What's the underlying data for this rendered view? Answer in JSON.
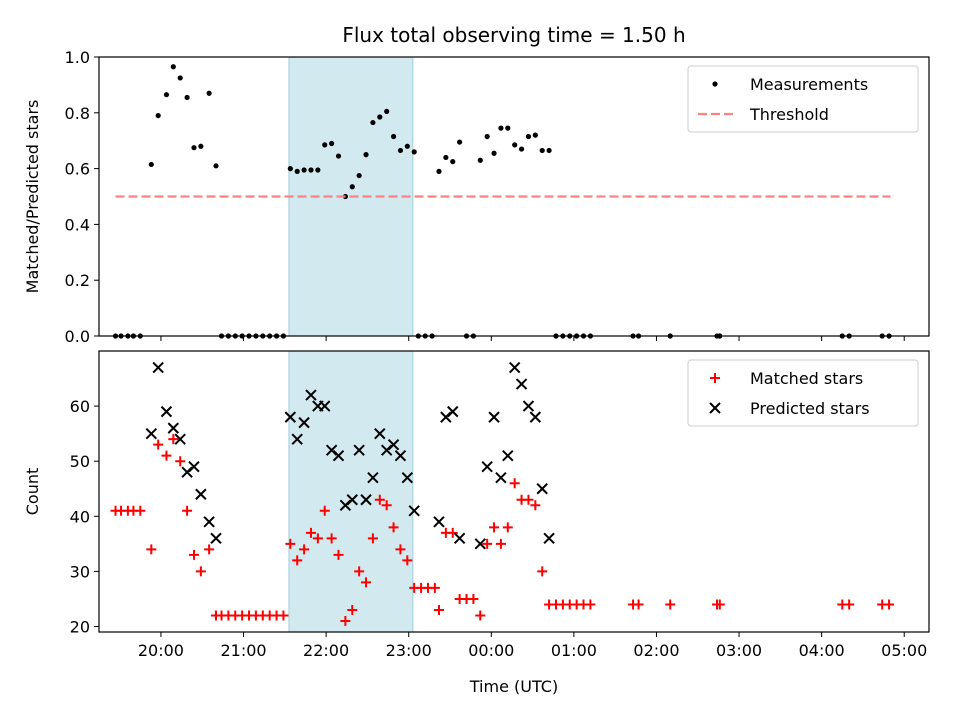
{
  "chart_data": [
    {
      "type": "scatter",
      "title": "Flux total observing time = 1.50 h",
      "xlabel": "",
      "ylabel": "Matched/Predicted stars",
      "ylim": [
        0,
        1.0
      ],
      "xlim": [
        "19:15",
        "05:18"
      ],
      "x_ticks": [
        "20:00",
        "21:00",
        "22:00",
        "23:00",
        "00:00",
        "01:00",
        "02:00",
        "03:00",
        "04:00",
        "05:00"
      ],
      "y_ticks": [
        "0.0",
        "0.2",
        "0.4",
        "0.6",
        "0.8",
        "1.0"
      ],
      "shaded_interval": [
        "21:33",
        "23:03"
      ],
      "shade_color": "#d2e9f0",
      "legend": {
        "position": "top-right",
        "entries": [
          "Measurements",
          "Threshold"
        ]
      },
      "series": [
        {
          "name": "Measurements",
          "marker": "dot",
          "color": "#000000",
          "points": [
            [
              "19:27",
              0
            ],
            [
              "19:31",
              0
            ],
            [
              "19:36",
              0
            ],
            [
              "19:40",
              0
            ],
            [
              "19:45",
              0
            ],
            [
              "19:53",
              0.615
            ],
            [
              "19:58",
              0.79
            ],
            [
              "20:04",
              0.865
            ],
            [
              "20:09",
              0.965
            ],
            [
              "20:14",
              0.925
            ],
            [
              "20:19",
              0.855
            ],
            [
              "20:24",
              0.675
            ],
            [
              "20:29",
              0.68
            ],
            [
              "20:35",
              0.87
            ],
            [
              "20:40",
              0.61
            ],
            [
              "20:44",
              0
            ],
            [
              "20:49",
              0
            ],
            [
              "20:54",
              0
            ],
            [
              "20:59",
              0
            ],
            [
              "21:04",
              0
            ],
            [
              "21:09",
              0
            ],
            [
              "21:14",
              0
            ],
            [
              "21:19",
              0
            ],
            [
              "21:24",
              0
            ],
            [
              "21:29",
              0
            ],
            [
              "21:34",
              0.6
            ],
            [
              "21:39",
              0.59
            ],
            [
              "21:44",
              0.595
            ],
            [
              "21:49",
              0.595
            ],
            [
              "21:54",
              0.595
            ],
            [
              "21:59",
              0.685
            ],
            [
              "22:04",
              0.69
            ],
            [
              "22:09",
              0.645
            ],
            [
              "22:14",
              0.5
            ],
            [
              "22:19",
              0.535
            ],
            [
              "22:24",
              0.575
            ],
            [
              "22:29",
              0.65
            ],
            [
              "22:34",
              0.765
            ],
            [
              "22:39",
              0.785
            ],
            [
              "22:44",
              0.805
            ],
            [
              "22:49",
              0.715
            ],
            [
              "22:54",
              0.665
            ],
            [
              "22:59",
              0.68
            ],
            [
              "23:04",
              0.66
            ],
            [
              "23:07",
              0
            ],
            [
              "23:12",
              0
            ],
            [
              "23:17",
              0
            ],
            [
              "23:22",
              0.59
            ],
            [
              "23:27",
              0.64
            ],
            [
              "23:32",
              0.625
            ],
            [
              "23:37",
              0.695
            ],
            [
              "23:42",
              0
            ],
            [
              "23:47",
              0
            ],
            [
              "23:52",
              0.63
            ],
            [
              "23:57",
              0.715
            ],
            [
              "00:02",
              0.655
            ],
            [
              "00:07",
              0.745
            ],
            [
              "00:12",
              0.745
            ],
            [
              "00:17",
              0.685
            ],
            [
              "00:22",
              0.67
            ],
            [
              "00:27",
              0.715
            ],
            [
              "00:32",
              0.72
            ],
            [
              "00:37",
              0.665
            ],
            [
              "00:42",
              0.665
            ],
            [
              "00:47",
              0
            ],
            [
              "00:52",
              0
            ],
            [
              "00:57",
              0
            ],
            [
              "01:02",
              0
            ],
            [
              "01:07",
              0
            ],
            [
              "01:12",
              0
            ],
            [
              "01:43",
              0
            ],
            [
              "01:47",
              0
            ],
            [
              "02:10",
              0
            ],
            [
              "02:44",
              0
            ],
            [
              "02:46",
              0
            ],
            [
              "04:15",
              0
            ],
            [
              "04:20",
              0
            ],
            [
              "04:44",
              0
            ],
            [
              "04:49",
              0
            ]
          ]
        },
        {
          "name": "Threshold",
          "style": "dashed",
          "color": "#ff8080",
          "points": [
            [
              "19:27",
              0.5
            ],
            [
              "04:50",
              0.5
            ]
          ]
        }
      ]
    },
    {
      "type": "scatter",
      "title": "",
      "xlabel": "Time (UTC)",
      "ylabel": "Count",
      "ylim": [
        19,
        70
      ],
      "xlim": [
        "19:15",
        "05:18"
      ],
      "x_ticks": [
        "20:00",
        "21:00",
        "22:00",
        "23:00",
        "00:00",
        "01:00",
        "02:00",
        "03:00",
        "04:00",
        "05:00"
      ],
      "y_ticks": [
        "20",
        "30",
        "40",
        "50",
        "60"
      ],
      "shaded_interval": [
        "21:33",
        "23:03"
      ],
      "shade_color": "#d2e9f0",
      "legend": {
        "position": "top-right",
        "entries": [
          "Matched stars",
          "Predicted stars"
        ]
      },
      "series": [
        {
          "name": "Matched stars",
          "marker": "plus",
          "color": "#ff0000",
          "points": [
            [
              "19:27",
              41
            ],
            [
              "19:31",
              41
            ],
            [
              "19:36",
              41
            ],
            [
              "19:40",
              41
            ],
            [
              "19:45",
              41
            ],
            [
              "19:53",
              34
            ],
            [
              "19:58",
              53
            ],
            [
              "20:04",
              51
            ],
            [
              "20:09",
              54
            ],
            [
              "20:14",
              50
            ],
            [
              "20:19",
              41
            ],
            [
              "20:24",
              33
            ],
            [
              "20:29",
              30
            ],
            [
              "20:35",
              34
            ],
            [
              "20:40",
              22
            ],
            [
              "20:44",
              22
            ],
            [
              "20:49",
              22
            ],
            [
              "20:54",
              22
            ],
            [
              "20:59",
              22
            ],
            [
              "21:04",
              22
            ],
            [
              "21:09",
              22
            ],
            [
              "21:14",
              22
            ],
            [
              "21:19",
              22
            ],
            [
              "21:24",
              22
            ],
            [
              "21:29",
              22
            ],
            [
              "21:34",
              35
            ],
            [
              "21:39",
              32
            ],
            [
              "21:44",
              34
            ],
            [
              "21:49",
              37
            ],
            [
              "21:54",
              36
            ],
            [
              "21:59",
              41
            ],
            [
              "22:04",
              36
            ],
            [
              "22:09",
              33
            ],
            [
              "22:14",
              21
            ],
            [
              "22:19",
              23
            ],
            [
              "22:24",
              30
            ],
            [
              "22:29",
              28
            ],
            [
              "22:34",
              36
            ],
            [
              "22:39",
              43
            ],
            [
              "22:44",
              42
            ],
            [
              "22:49",
              38
            ],
            [
              "22:54",
              34
            ],
            [
              "22:59",
              32
            ],
            [
              "23:04",
              27
            ],
            [
              "23:09",
              27
            ],
            [
              "23:14",
              27
            ],
            [
              "23:19",
              27
            ],
            [
              "23:22",
              23
            ],
            [
              "23:27",
              37
            ],
            [
              "23:32",
              37
            ],
            [
              "23:37",
              25
            ],
            [
              "23:42",
              25
            ],
            [
              "23:47",
              25
            ],
            [
              "23:52",
              22
            ],
            [
              "23:57",
              35
            ],
            [
              "00:02",
              38
            ],
            [
              "00:07",
              35
            ],
            [
              "00:12",
              38
            ],
            [
              "00:17",
              46
            ],
            [
              "00:22",
              43
            ],
            [
              "00:27",
              43
            ],
            [
              "00:32",
              42
            ],
            [
              "00:37",
              30
            ],
            [
              "00:42",
              24
            ],
            [
              "00:47",
              24
            ],
            [
              "00:52",
              24
            ],
            [
              "00:57",
              24
            ],
            [
              "01:02",
              24
            ],
            [
              "01:07",
              24
            ],
            [
              "01:12",
              24
            ],
            [
              "01:43",
              24
            ],
            [
              "01:47",
              24
            ],
            [
              "02:10",
              24
            ],
            [
              "02:44",
              24
            ],
            [
              "02:46",
              24
            ],
            [
              "04:15",
              24
            ],
            [
              "04:20",
              24
            ],
            [
              "04:44",
              24
            ],
            [
              "04:49",
              24
            ]
          ]
        },
        {
          "name": "Predicted stars",
          "marker": "x",
          "color": "#000000",
          "points": [
            [
              "19:53",
              55
            ],
            [
              "19:58",
              67
            ],
            [
              "20:04",
              59
            ],
            [
              "20:09",
              56
            ],
            [
              "20:14",
              54
            ],
            [
              "20:19",
              48
            ],
            [
              "20:24",
              49
            ],
            [
              "20:29",
              44
            ],
            [
              "20:35",
              39
            ],
            [
              "20:40",
              36
            ],
            [
              "21:34",
              58
            ],
            [
              "21:39",
              54
            ],
            [
              "21:44",
              57
            ],
            [
              "21:49",
              62
            ],
            [
              "21:54",
              60
            ],
            [
              "21:59",
              60
            ],
            [
              "22:04",
              52
            ],
            [
              "22:09",
              51
            ],
            [
              "22:14",
              42
            ],
            [
              "22:19",
              43
            ],
            [
              "22:24",
              52
            ],
            [
              "22:29",
              43
            ],
            [
              "22:34",
              47
            ],
            [
              "22:39",
              55
            ],
            [
              "22:44",
              52
            ],
            [
              "22:49",
              53
            ],
            [
              "22:54",
              51
            ],
            [
              "22:59",
              47
            ],
            [
              "23:04",
              41
            ],
            [
              "23:22",
              39
            ],
            [
              "23:27",
              58
            ],
            [
              "23:32",
              59
            ],
            [
              "23:37",
              36
            ],
            [
              "23:52",
              35
            ],
            [
              "23:57",
              49
            ],
            [
              "00:02",
              58
            ],
            [
              "00:07",
              47
            ],
            [
              "00:12",
              51
            ],
            [
              "00:17",
              67
            ],
            [
              "00:22",
              64
            ],
            [
              "00:27",
              60
            ],
            [
              "00:32",
              58
            ],
            [
              "00:37",
              45
            ],
            [
              "00:42",
              36
            ]
          ]
        }
      ]
    }
  ]
}
